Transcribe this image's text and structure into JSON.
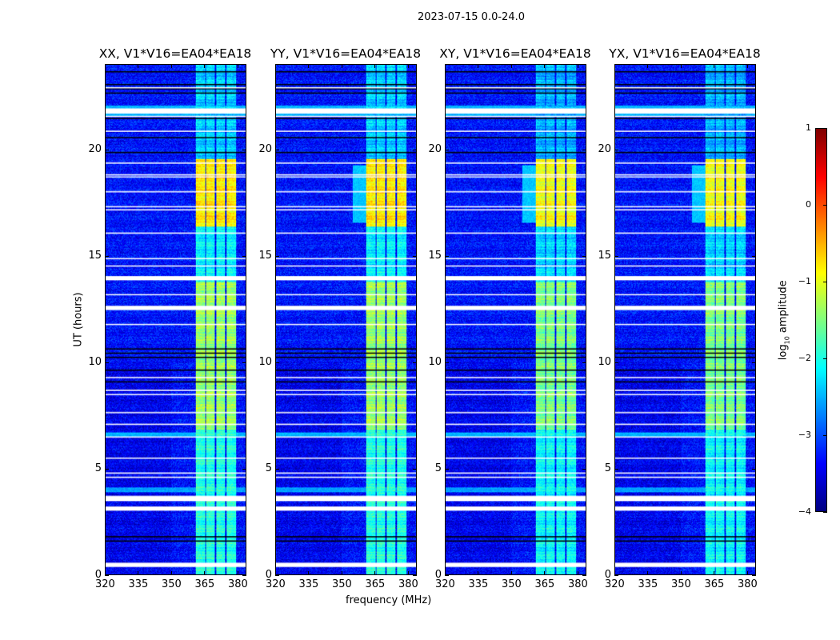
{
  "chart_data": {
    "type": "heatmap",
    "title": "2023-07-15 0.0-24.0",
    "xlabel": "frequency (MHz)",
    "ylabel": "UT (hours)",
    "xlim": [
      320,
      384
    ],
    "ylim": [
      0,
      24
    ],
    "xticks": [
      "320",
      "335",
      "350",
      "365",
      "380"
    ],
    "yticks": [
      "0",
      "5",
      "10",
      "15",
      "20"
    ],
    "panels": [
      {
        "title": "XX, V1*V16=EA04*EA18",
        "pol": "XX"
      },
      {
        "title": "YY, V1*V16=EA04*EA18",
        "pol": "YY"
      },
      {
        "title": "XY, V1*V16=EA04*EA18",
        "pol": "XY"
      },
      {
        "title": "YX, V1*V16=EA04*EA18",
        "pol": "YX"
      }
    ],
    "colorbar": {
      "label_main": "log",
      "label_sub": "10",
      "label_rest": " amplitude",
      "range": [
        -4,
        1
      ],
      "ticks": [
        "1",
        "0",
        "−1",
        "−2",
        "−3",
        "−4"
      ],
      "colormap": "jet"
    },
    "background_level": -3.3,
    "rfi_channels_mhz": [
      [
        361,
        365.3
      ],
      [
        365.8,
        369.8
      ],
      [
        370.3,
        374.5
      ],
      [
        375.1,
        379.6
      ]
    ],
    "rfi_levels": [
      {
        "hours": [
          0,
          6.8
        ],
        "level": -1.9
      },
      {
        "hours": [
          6.8,
          13.8
        ],
        "level": -1.3
      },
      {
        "hours": [
          13.8,
          16.4
        ],
        "level": -2.1
      },
      {
        "hours": [
          16.4,
          19.6
        ],
        "level": -0.7
      },
      {
        "hours": [
          19.6,
          24
        ],
        "level": -2.3
      }
    ],
    "bright_rows_hours": [
      [
        21.6,
        22.1,
        -2.5
      ],
      [
        6.5,
        6.7,
        -2.5
      ],
      [
        3.9,
        4.1,
        -2.6
      ]
    ],
    "flagged_rows_hours": [
      22.95,
      [
        21.7,
        21.95
      ],
      21.6,
      20.9,
      19.4,
      18.85,
      18.75,
      18.05,
      17.35,
      17.2,
      16.1,
      14.9,
      14.55,
      [
        13.85,
        14.05
      ],
      13.2,
      [
        12.45,
        12.65
      ],
      11.8,
      9.3,
      8.7,
      8.5,
      7.65,
      7.1,
      6.5,
      5.5,
      4.8,
      4.6,
      [
        3.45,
        3.7
      ],
      [
        3.0,
        3.2
      ],
      [
        0.35,
        0.55
      ]
    ],
    "zero_rows_hours": [
      23.7,
      23.1,
      22.9,
      22.7,
      21.5,
      20.6,
      19.9,
      10.65,
      10.45,
      10.25,
      9.65,
      9.1,
      1.8,
      1.6
    ]
  }
}
